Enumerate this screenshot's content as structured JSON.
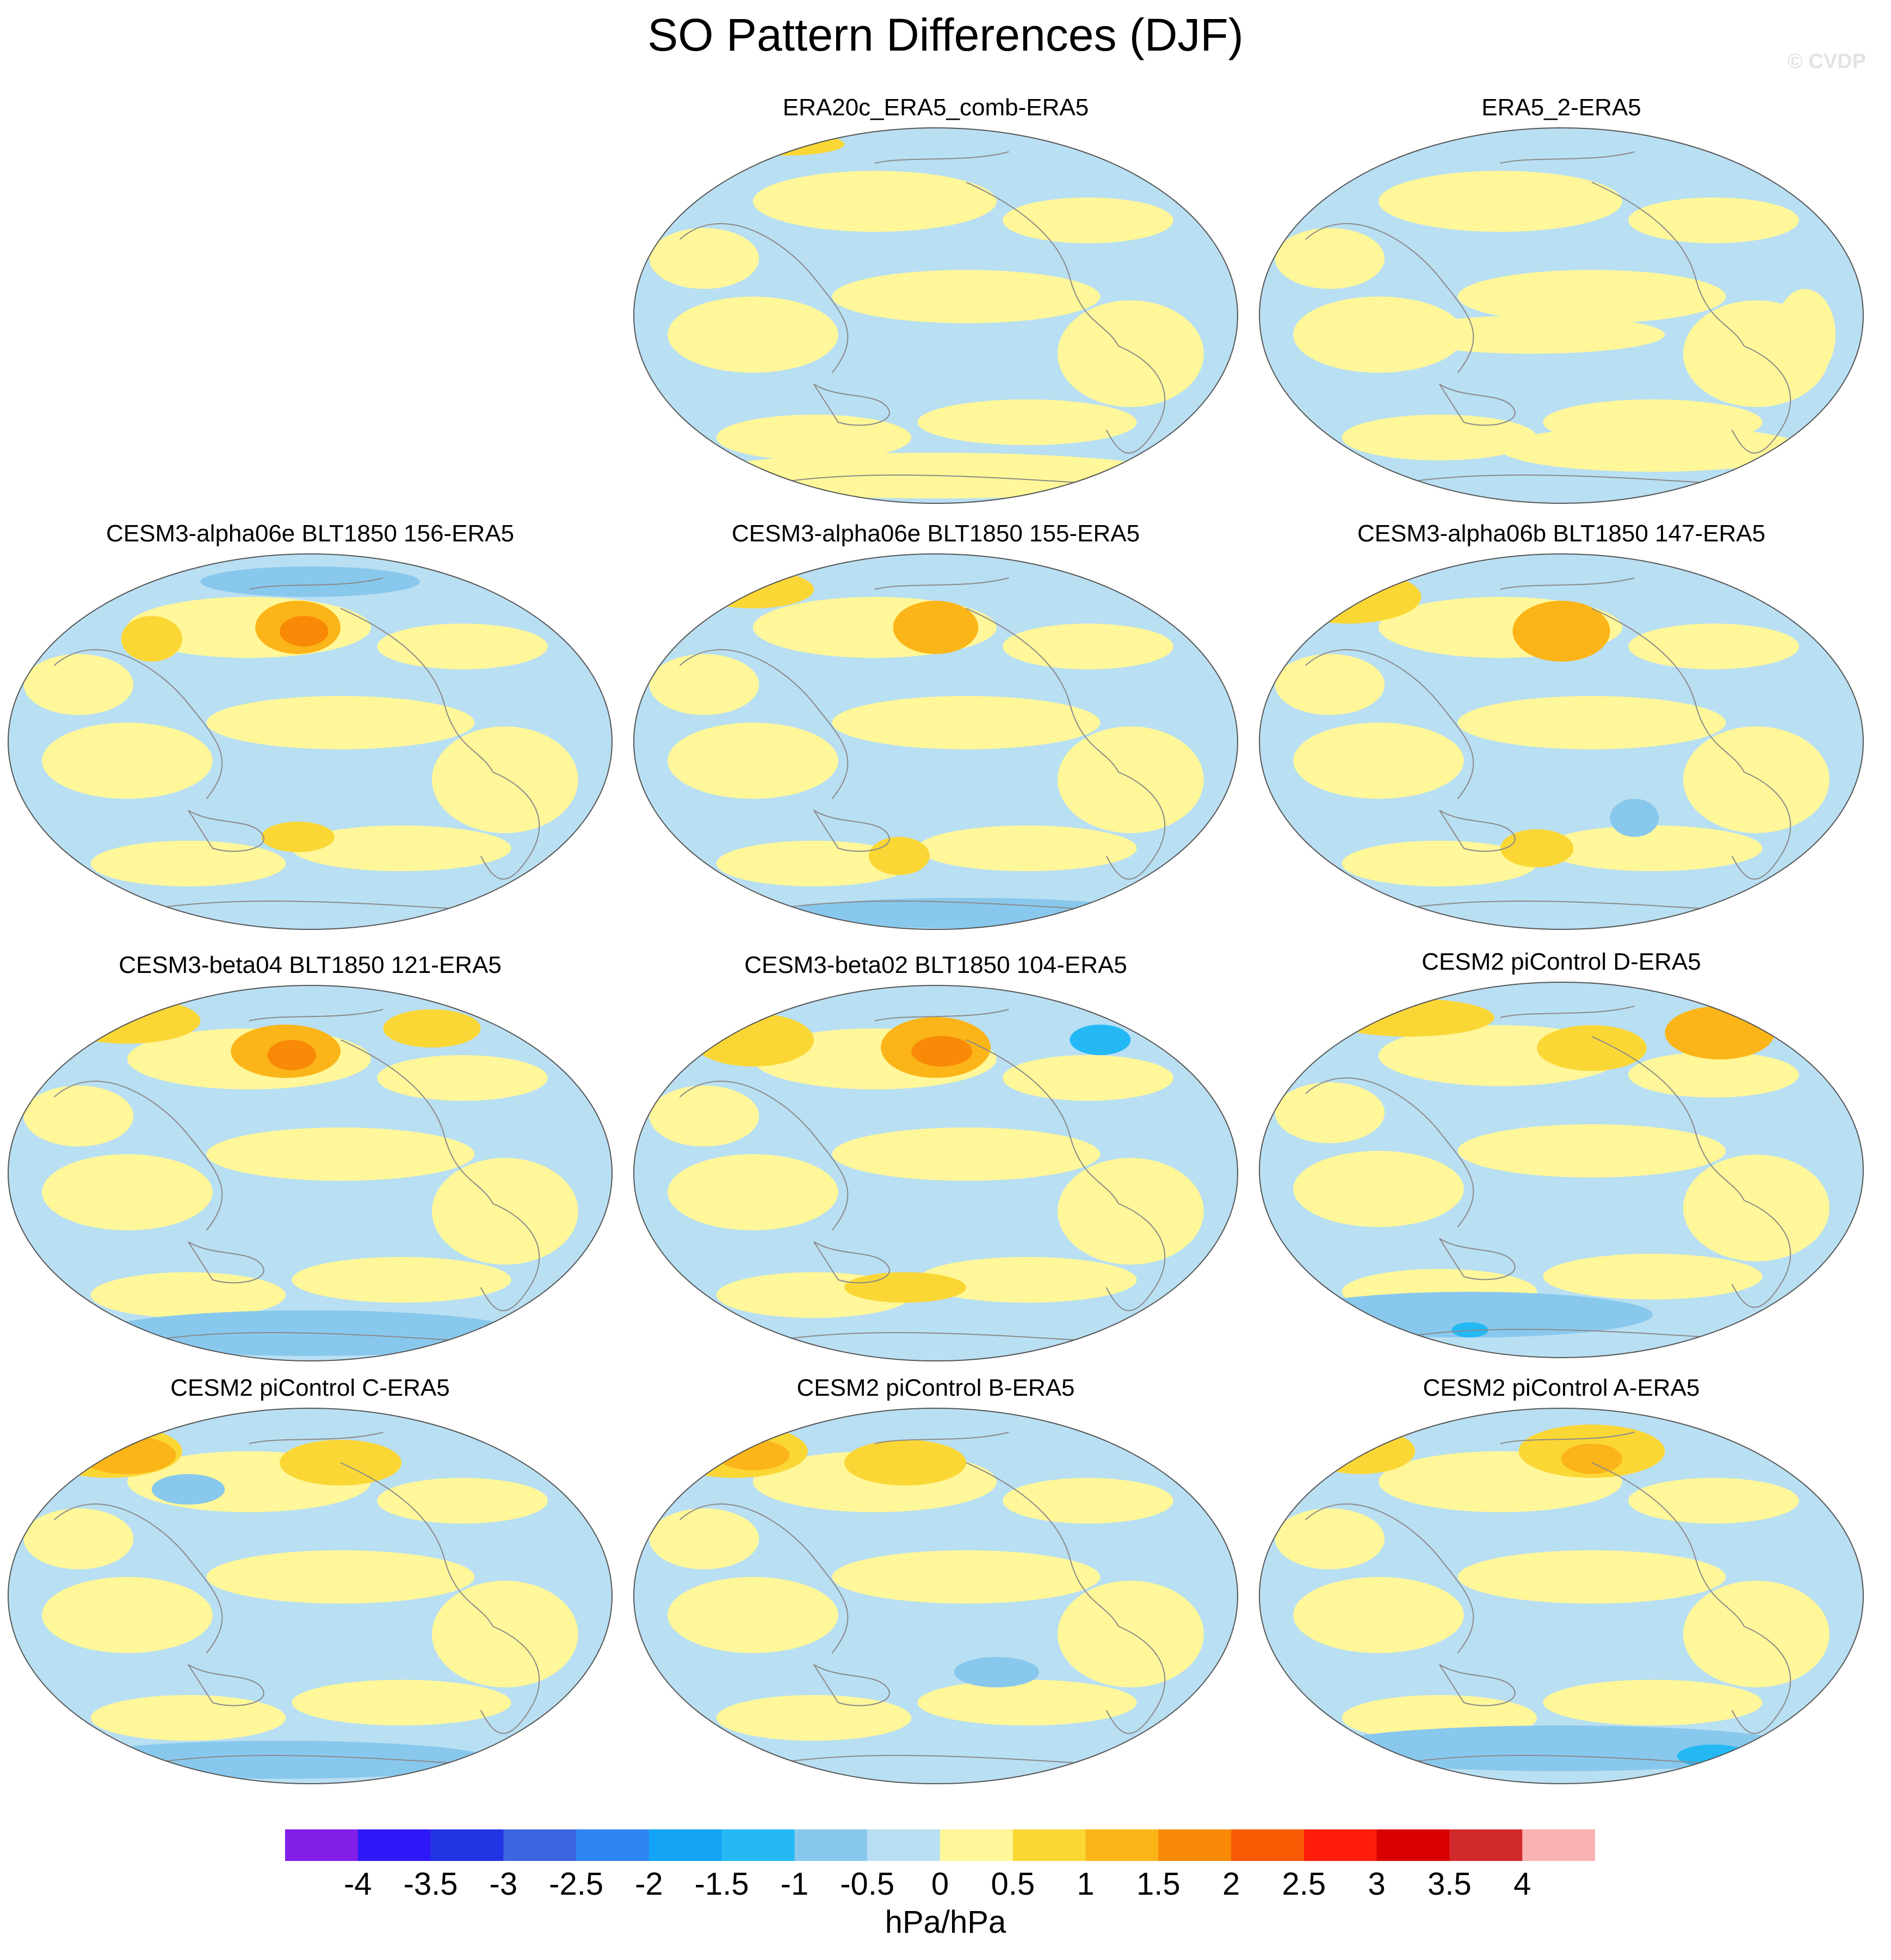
{
  "title": "SO Pattern Differences (DJF)",
  "credit": "© CVDP",
  "colors": {
    "neg": "#b9dff2",
    "pos": "#fff799",
    "pos1": "#fbd736",
    "pos15": "#fbb518",
    "pos2": "#f98a07",
    "neg1": "#89c8ed",
    "neg15": "#24b9f5",
    "land": "#8a8a8a"
  },
  "panels": [
    {
      "title": "ERA20c_ERA5_comb-ERA5"
    },
    {
      "title": "ERA5_2-ERA5"
    },
    {
      "title": "CESM3-alpha06e BLT1850 156-ERA5"
    },
    {
      "title": "CESM3-alpha06e BLT1850 155-ERA5"
    },
    {
      "title": "CESM3-alpha06b BLT1850 147-ERA5"
    },
    {
      "title": "CESM3-beta04 BLT1850 121-ERA5"
    },
    {
      "title": "CESM3-beta02 BLT1850 104-ERA5"
    },
    {
      "title": "CESM2 piControl D-ERA5"
    },
    {
      "title": "CESM2 piControl C-ERA5"
    },
    {
      "title": "CESM2 piControl B-ERA5"
    },
    {
      "title": "CESM2 piControl A-ERA5"
    }
  ],
  "colorbar": {
    "colors": [
      "#8220e8",
      "#2d19f8",
      "#2234e3",
      "#3b66e0",
      "#2c85f1",
      "#13a4f5",
      "#24b9f5",
      "#89c8ed",
      "#b9dff2",
      "#fff799",
      "#fbd736",
      "#fbb518",
      "#f98a07",
      "#f95b05",
      "#ff1d0a",
      "#d90101",
      "#d12a2a",
      "#fbb2b2"
    ],
    "labels": [
      "-4",
      "-3.5",
      "-3",
      "-2.5",
      "-2",
      "-1.5",
      "-1",
      "-0.5",
      "0",
      "0.5",
      "1",
      "1.5",
      "2",
      "2.5",
      "3",
      "3.5",
      "4"
    ],
    "units": "hPa/hPa"
  }
}
